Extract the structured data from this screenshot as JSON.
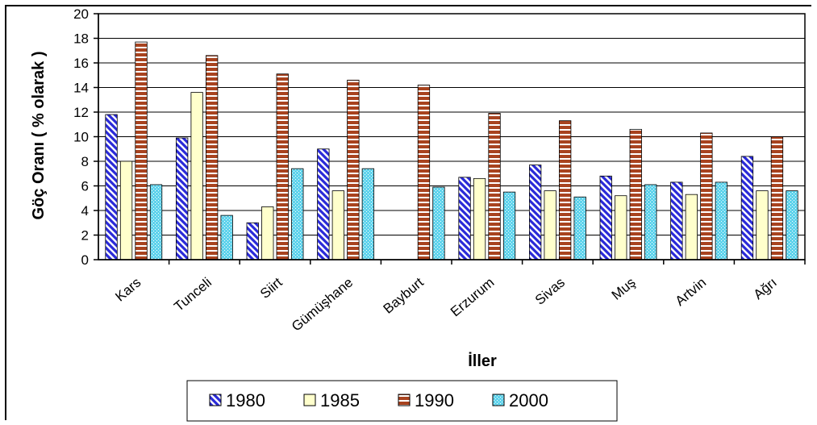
{
  "chart_data": {
    "type": "bar",
    "title": "",
    "xlabel": "İller",
    "ylabel": "Göç Oranı ( % olarak )",
    "ylim": [
      0,
      20
    ],
    "yticks": [
      0,
      2,
      4,
      6,
      8,
      10,
      12,
      14,
      16,
      18,
      20
    ],
    "grid": true,
    "legend_position": "bottom",
    "categories": [
      "Kars",
      "Tunceli",
      "Siirt",
      "Gümüşhane",
      "Bayburt",
      "Erzurum",
      "Sivas",
      "Muş",
      "Artvin",
      "Ağrı"
    ],
    "series": [
      {
        "name": "1980",
        "pattern": "diagonal",
        "colors": [
          "#2a2ad8",
          "#ffffff"
        ],
        "values": [
          11.8,
          9.9,
          3.0,
          9.0,
          null,
          6.7,
          7.7,
          6.8,
          6.3,
          8.4
        ]
      },
      {
        "name": "1985",
        "pattern": "solid",
        "colors": [
          "#ffffcc"
        ],
        "values": [
          8.0,
          13.6,
          4.3,
          5.6,
          null,
          6.6,
          5.6,
          5.2,
          5.3,
          5.6
        ]
      },
      {
        "name": "1990",
        "pattern": "horizontal",
        "colors": [
          "#a8431f",
          "#ffffff"
        ],
        "values": [
          17.7,
          16.6,
          15.1,
          14.6,
          14.2,
          11.9,
          11.3,
          10.6,
          10.3,
          10.0
        ]
      },
      {
        "name": "2000",
        "pattern": "dots",
        "colors": [
          "#5fd3ec",
          "#ffffff"
        ],
        "values": [
          6.1,
          3.6,
          7.4,
          7.4,
          5.9,
          5.5,
          5.1,
          6.1,
          6.3,
          5.6
        ]
      }
    ]
  }
}
